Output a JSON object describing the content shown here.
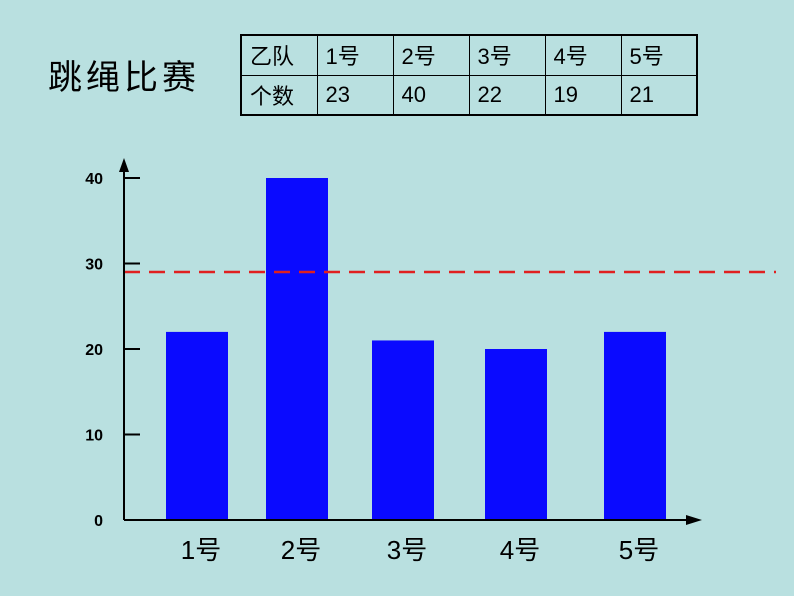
{
  "title": "跳绳比赛",
  "table": {
    "row_headers": [
      "乙队",
      "个数"
    ],
    "columns": [
      "1号",
      "2号",
      "3号",
      "4号",
      "5号"
    ],
    "values": [
      "23",
      "40",
      "22",
      "19",
      "21"
    ]
  },
  "chart_data": {
    "type": "bar",
    "categories": [
      "1号",
      "2号",
      "3号",
      "4号",
      "5号"
    ],
    "values": [
      22,
      40,
      21,
      20,
      22
    ],
    "ylim": [
      0,
      40
    ],
    "yticks": [
      0,
      10,
      20,
      30,
      40
    ],
    "reference_line": {
      "value": 29,
      "style": "dashed",
      "color": "#e02020"
    },
    "bar_color": "#0a0aff",
    "grid": false,
    "title": "",
    "xlabel": "",
    "ylabel": ""
  }
}
